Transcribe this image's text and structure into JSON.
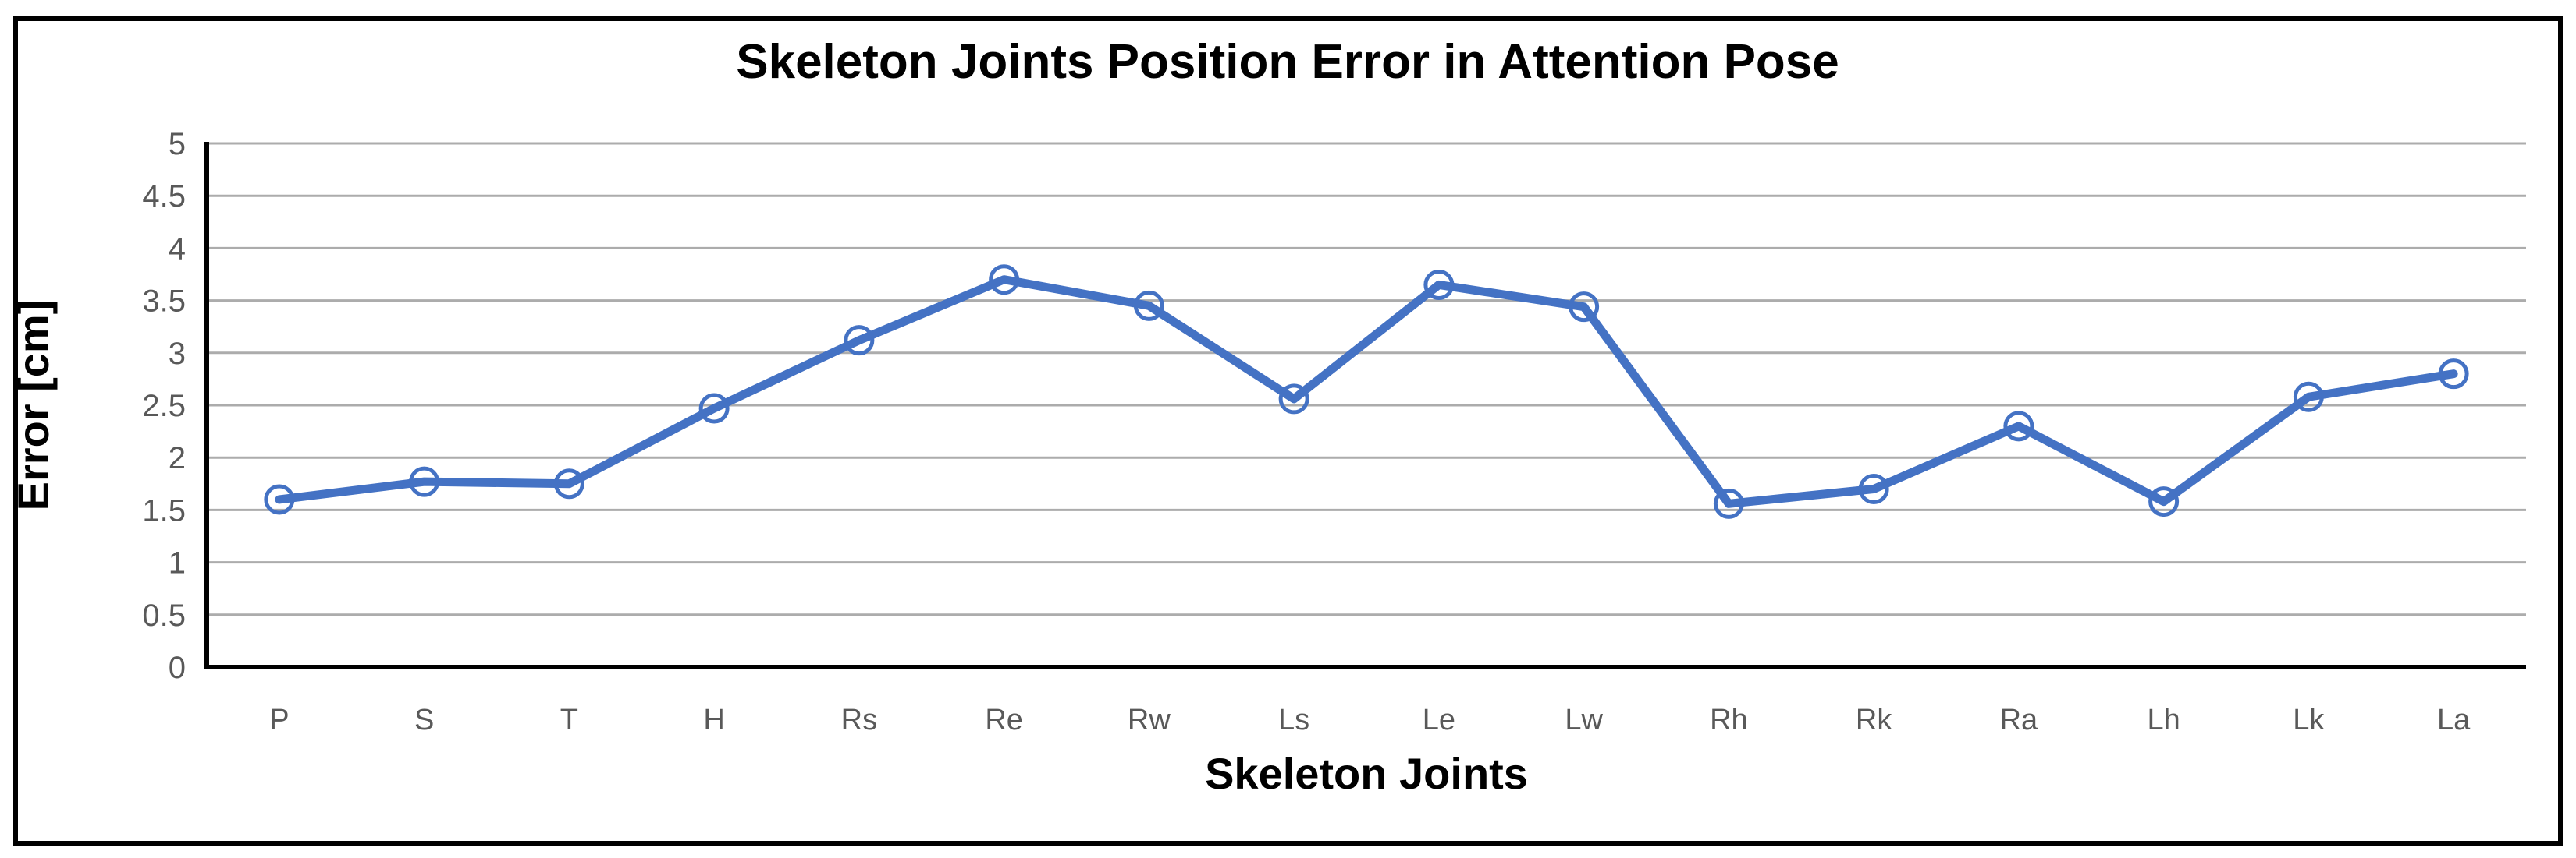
{
  "chart_data": {
    "type": "line",
    "title": "Skeleton Joints Position Error in Attention Pose",
    "xlabel": "Skeleton Joints",
    "ylabel": "Error [cm]",
    "categories": [
      "P",
      "S",
      "T",
      "H",
      "Rs",
      "Re",
      "Rw",
      "Ls",
      "Le",
      "Lw",
      "Rh",
      "Rk",
      "Ra",
      "Lh",
      "Lk",
      "La"
    ],
    "values": [
      1.6,
      1.77,
      1.75,
      2.47,
      3.12,
      3.7,
      3.45,
      2.56,
      3.65,
      3.44,
      1.56,
      1.7,
      2.3,
      1.58,
      2.58,
      2.8
    ],
    "ylim": [
      0,
      5
    ],
    "ytick_step": 0.5,
    "ytick_labels": [
      "0",
      "0.5",
      "1",
      "1.5",
      "2",
      "2.5",
      "3",
      "3.5",
      "4",
      "4.5",
      "5"
    ],
    "grid": true,
    "legend_position": "none",
    "marker": "hollow-circle",
    "colors": {
      "line": "#4472C4",
      "gridline": "#ACACAC",
      "axis": "#000000",
      "tick_label": "#595959",
      "text": "#000000",
      "background": "#FFFFFF",
      "border": "#000000"
    }
  }
}
